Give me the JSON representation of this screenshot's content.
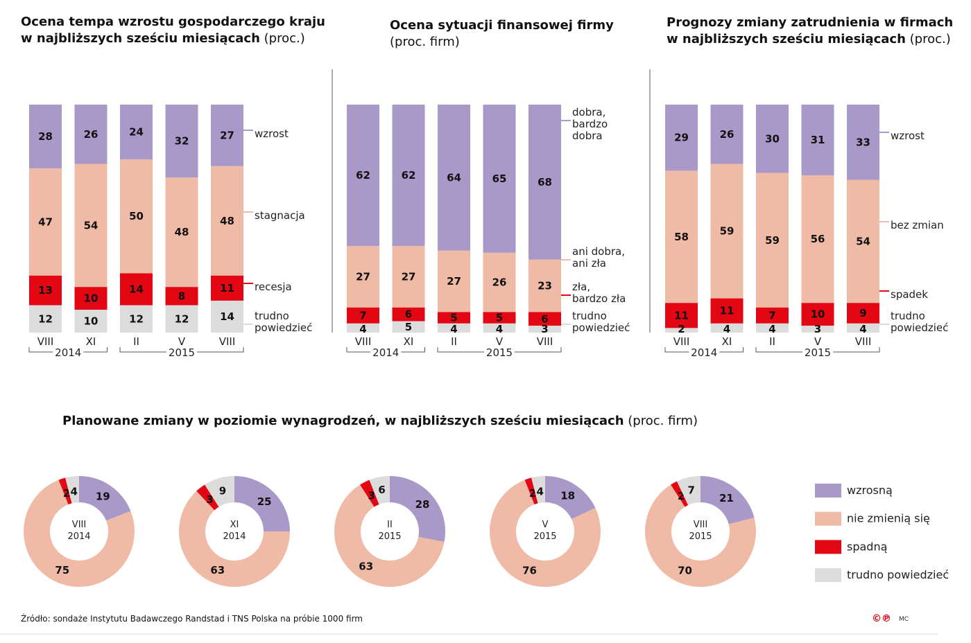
{
  "colors": {
    "purple": "#a899c8",
    "peach": "#f0bba6",
    "red": "#e30613",
    "gray": "#dcdcdc"
  },
  "chart_data": [
    {
      "type": "bar",
      "stacked": true,
      "title_bold": [
        "Ocena tempa wzrostu gospodarczego kraju",
        "w najbliższych sześciu miesiącach"
      ],
      "title_regular": "(proc.)",
      "categories": [
        "VIII",
        "XI",
        "II",
        "V",
        "VIII"
      ],
      "years": [
        {
          "label": "2014",
          "from": 0,
          "to": 1
        },
        {
          "label": "2015",
          "from": 2,
          "to": 4
        }
      ],
      "series": [
        {
          "name": [
            "wzrost"
          ],
          "color": "#a899c8",
          "values": [
            28,
            26,
            24,
            32,
            27
          ]
        },
        {
          "name": [
            "stagnacja"
          ],
          "color": "#f0bba6",
          "values": [
            47,
            54,
            50,
            48,
            48
          ]
        },
        {
          "name": [
            "recesja"
          ],
          "color": "#e30613",
          "values": [
            13,
            10,
            14,
            8,
            11
          ]
        },
        {
          "name": [
            "trudno",
            "powiedzieć"
          ],
          "color": "#dcdcdc",
          "values": [
            12,
            10,
            12,
            12,
            14
          ]
        }
      ],
      "ylim": [
        0,
        100
      ]
    },
    {
      "type": "bar",
      "stacked": true,
      "title_bold": [
        "Ocena sytuacji finansowej firmy"
      ],
      "title_regular": "(proc. firm)",
      "categories": [
        "VIII",
        "XI",
        "II",
        "V",
        "VIII"
      ],
      "years": [
        {
          "label": "2014",
          "from": 0,
          "to": 1
        },
        {
          "label": "2015",
          "from": 2,
          "to": 4
        }
      ],
      "series": [
        {
          "name": [
            "dobra,",
            "bardzo",
            "dobra"
          ],
          "color": "#a899c8",
          "values": [
            62,
            62,
            64,
            65,
            68
          ]
        },
        {
          "name": [
            "ani dobra,",
            "ani zła"
          ],
          "color": "#f0bba6",
          "values": [
            27,
            27,
            27,
            26,
            23
          ]
        },
        {
          "name": [
            "zła,",
            "bardzo zła"
          ],
          "color": "#e30613",
          "values": [
            7,
            6,
            5,
            5,
            6
          ]
        },
        {
          "name": [
            "trudno",
            "powiedzieć"
          ],
          "color": "#dcdcdc",
          "values": [
            4,
            5,
            4,
            4,
            3
          ]
        }
      ],
      "ylim": [
        0,
        100
      ]
    },
    {
      "type": "bar",
      "stacked": true,
      "title_bold": [
        "Prognozy zmiany zatrudnienia w firmach",
        "w najbliższych sześciu miesiącach"
      ],
      "title_regular": "(proc.)",
      "categories": [
        "VIII",
        "XI",
        "II",
        "V",
        "VIII"
      ],
      "years": [
        {
          "label": "2014",
          "from": 0,
          "to": 1
        },
        {
          "label": "2015",
          "from": 2,
          "to": 4
        }
      ],
      "series": [
        {
          "name": [
            "wzrost"
          ],
          "color": "#a899c8",
          "values": [
            29,
            26,
            30,
            31,
            33
          ]
        },
        {
          "name": [
            "bez zmian"
          ],
          "color": "#f0bba6",
          "values": [
            58,
            59,
            59,
            56,
            54
          ]
        },
        {
          "name": [
            "spadek"
          ],
          "color": "#e30613",
          "values": [
            11,
            11,
            7,
            10,
            9
          ]
        },
        {
          "name": [
            "trudno",
            "powiedzieć"
          ],
          "color": "#dcdcdc",
          "values": [
            2,
            4,
            4,
            3,
            4
          ]
        }
      ],
      "ylim": [
        0,
        100
      ]
    },
    {
      "type": "pie",
      "donut": true,
      "title_bold": "Planowane zmiany w poziomie wynagrodzeń, w najbliższych sześciu miesiącach",
      "title_regular": "(proc. firm)",
      "legend": [
        {
          "name": "wzrosną",
          "color": "#a899c8"
        },
        {
          "name": "nie zmienią się",
          "color": "#f0bba6"
        },
        {
          "name": "spadną",
          "color": "#e30613"
        },
        {
          "name": "trudno powiedzieć",
          "color": "#dcdcdc"
        }
      ],
      "legend_placement": "right",
      "donuts": [
        {
          "label": [
            "VIII",
            "2014"
          ],
          "values": [
            19,
            75,
            2,
            4
          ]
        },
        {
          "label": [
            "XI",
            "2014"
          ],
          "values": [
            25,
            63,
            3,
            9
          ]
        },
        {
          "label": [
            "II",
            "2015"
          ],
          "values": [
            28,
            63,
            3,
            6
          ]
        },
        {
          "label": [
            "V",
            "2015"
          ],
          "values": [
            18,
            76,
            2,
            4
          ]
        },
        {
          "label": [
            "VIII",
            "2015"
          ],
          "values": [
            21,
            70,
            2,
            7
          ]
        }
      ]
    }
  ],
  "footer": {
    "source": "Źródło: sondaże Instytutu Badawczego Randstad i TNS Polska na próbie 1000 firm",
    "logo": "©℗",
    "author": "MC"
  }
}
